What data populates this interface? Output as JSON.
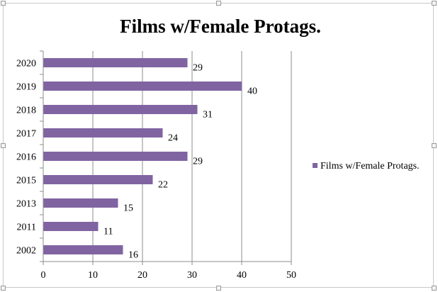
{
  "chart_data": {
    "type": "bar",
    "orientation": "horizontal",
    "title": "Films w/Female Protags.",
    "categories": [
      "2002",
      "2011",
      "2013",
      "2015",
      "2016",
      "2017",
      "2018",
      "2019",
      "2020"
    ],
    "series": [
      {
        "name": "Films w/Female Protags.",
        "values": [
          16,
          11,
          15,
          22,
          29,
          24,
          31,
          40,
          29
        ]
      }
    ],
    "xlim": [
      0,
      50
    ],
    "x_ticks": [
      0,
      10,
      20,
      30,
      40,
      50
    ],
    "grid": true,
    "legend_position": "right",
    "bar_color": "#8064a2",
    "data_labels": true
  }
}
